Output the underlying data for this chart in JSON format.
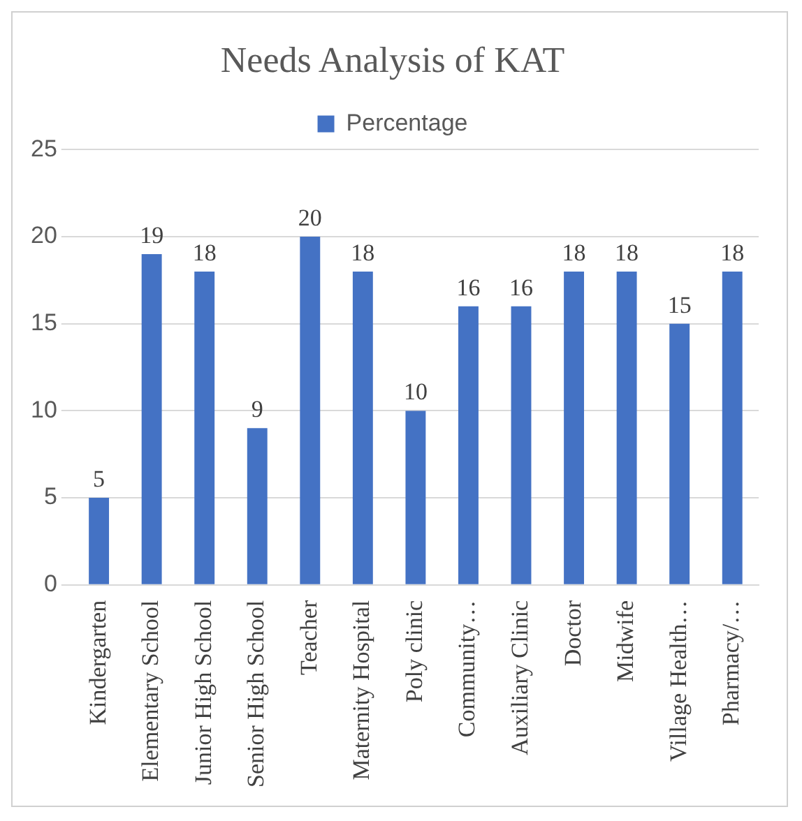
{
  "chart_data": {
    "type": "bar",
    "title": "Needs Analysis of KAT",
    "categories": [
      "Kindergarten",
      "Elementary School",
      "Junior High School",
      "Senior High School",
      "Teacher",
      "Maternity Hospital",
      "Poly clinic",
      "Community…",
      "Auxiliary Clinic",
      "Doctor",
      "Midwife",
      "Village Health…",
      "Pharmacy/…"
    ],
    "series": [
      {
        "name": "Percentage",
        "color": "#4472c4",
        "values": [
          5,
          19,
          18,
          9,
          20,
          18,
          10,
          16,
          16,
          18,
          18,
          15,
          18
        ]
      }
    ],
    "ylim": [
      0,
      25
    ],
    "yticks": [
      0,
      5,
      10,
      15,
      20,
      25
    ],
    "grid": "y",
    "legend": "top",
    "data_labels": true
  }
}
